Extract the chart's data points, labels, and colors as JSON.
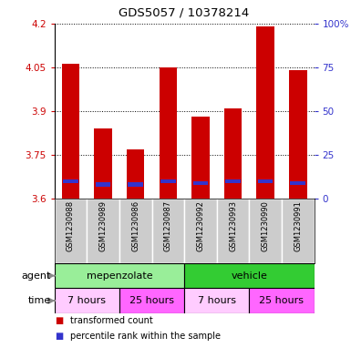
{
  "title": "GDS5057 / 10378214",
  "samples": [
    "GSM1230988",
    "GSM1230989",
    "GSM1230986",
    "GSM1230987",
    "GSM1230992",
    "GSM1230993",
    "GSM1230990",
    "GSM1230991"
  ],
  "transformed_counts": [
    4.06,
    3.84,
    3.77,
    4.05,
    3.88,
    3.91,
    4.19,
    4.04
  ],
  "percentile_ranks": [
    10,
    8,
    8,
    10,
    9,
    10,
    10,
    9
  ],
  "y_min": 3.6,
  "y_max": 4.2,
  "y_ticks": [
    3.6,
    3.75,
    3.9,
    4.05,
    4.2
  ],
  "y_tick_labels": [
    "3.6",
    "3.75",
    "3.9",
    "4.05",
    "4.2"
  ],
  "right_y_ticks": [
    0,
    25,
    50,
    75,
    100
  ],
  "right_y_tick_labels": [
    "0",
    "25",
    "50",
    "75",
    "100%"
  ],
  "bar_color": "#cc0000",
  "percentile_color": "#3333cc",
  "agent_groups": [
    {
      "label": "mepenzolate",
      "start": 0,
      "end": 4,
      "color": "#99ee99"
    },
    {
      "label": "vehicle",
      "start": 4,
      "end": 8,
      "color": "#33cc33"
    }
  ],
  "time_groups": [
    {
      "label": "7 hours",
      "start": 0,
      "end": 2,
      "color": "#ffccff"
    },
    {
      "label": "25 hours",
      "start": 2,
      "end": 4,
      "color": "#ff66ff"
    },
    {
      "label": "7 hours",
      "start": 4,
      "end": 6,
      "color": "#ffccff"
    },
    {
      "label": "25 hours",
      "start": 6,
      "end": 8,
      "color": "#ff66ff"
    }
  ],
  "legend_items": [
    {
      "color": "#cc0000",
      "label": "transformed count"
    },
    {
      "color": "#3333cc",
      "label": "percentile rank within the sample"
    }
  ],
  "xlabel_agent": "agent",
  "xlabel_time": "time",
  "bar_width": 0.55,
  "percentile_bar_height": 0.014,
  "tick_color_left": "#cc0000",
  "tick_color_right": "#3333cc",
  "label_bg": "#cccccc",
  "outer_bg": "#ffffff"
}
